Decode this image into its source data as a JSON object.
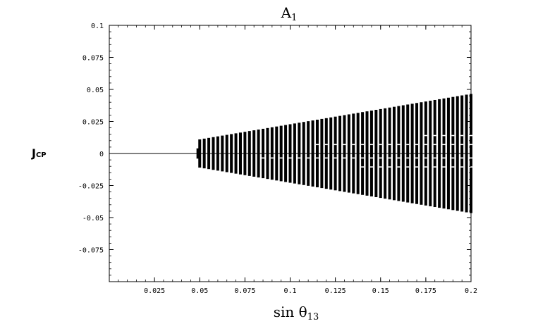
{
  "chart_data": {
    "type": "bar",
    "title": "A",
    "title_sub": "1",
    "xlabel_main": "sin θ",
    "xlabel_sub": "13",
    "ylabel_main": "J",
    "ylabel_sub": "CP",
    "xlim": [
      0.0,
      0.2
    ],
    "ylim": [
      -0.1,
      0.1
    ],
    "x_ticks": [
      0.025,
      0.05,
      0.075,
      0.1,
      0.125,
      0.15,
      0.175,
      0.2
    ],
    "x_tick_labels": [
      "0.025",
      "0.05",
      "0.075",
      "0.1",
      "0.125",
      "0.15",
      "0.175",
      "0.2"
    ],
    "y_ticks": [
      0.1,
      0.075,
      0.05,
      0.025,
      0,
      -0.025,
      -0.05,
      -0.075
    ],
    "y_tick_labels": [
      "0.1",
      "0.075",
      "0.05",
      "0.025",
      "0",
      "-0.025",
      "-0.05",
      "-0.075"
    ],
    "zero_line": {
      "x_start": 0.0,
      "x_end": 0.2,
      "y": 0
    },
    "first_bar": {
      "x": 0.0488,
      "half_height": 0.004
    },
    "band": {
      "x_start": 0.05,
      "x_end": 0.2,
      "spacing": 0.0025,
      "half_height_at_start": 0.011,
      "half_height_at_end": 0.0465
    },
    "grid": false,
    "legend": "none"
  }
}
